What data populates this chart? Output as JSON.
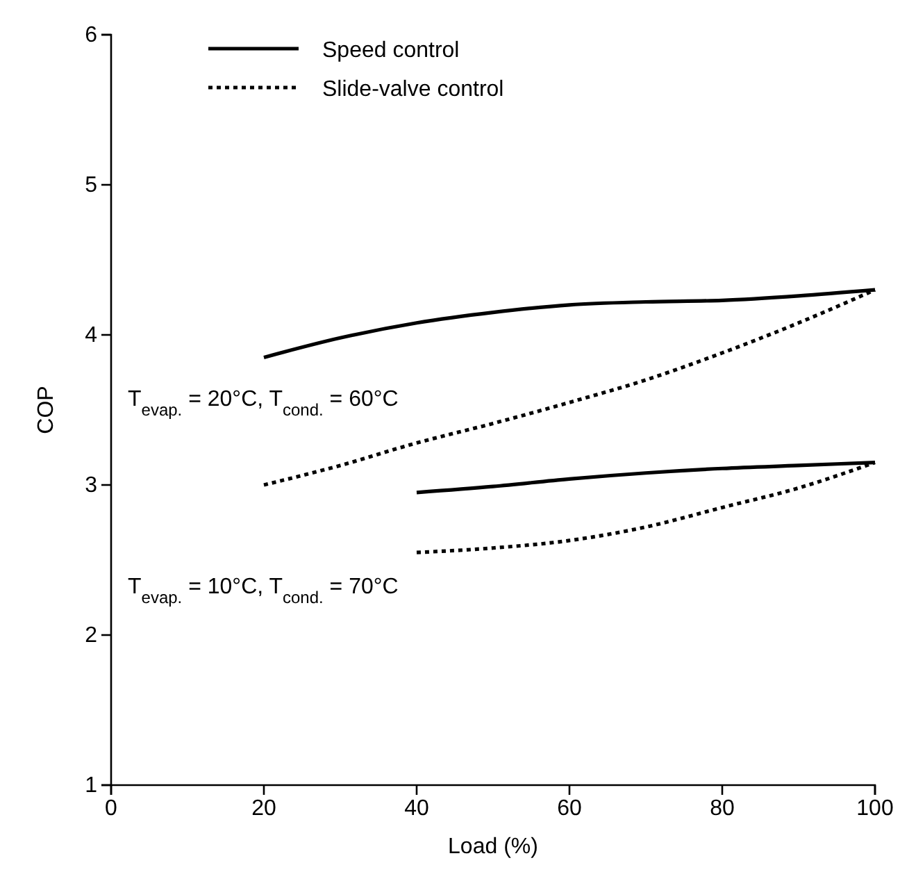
{
  "chart_data": {
    "type": "line",
    "xlabel": "Load (%)",
    "ylabel": "COP",
    "xlim": [
      0,
      100
    ],
    "xticks": [
      0,
      20,
      40,
      60,
      80,
      100
    ],
    "ylim": [
      1,
      6
    ],
    "yticks": [
      1,
      2,
      3,
      4,
      5,
      6
    ],
    "grid": false,
    "legend": "top left",
    "marker": "none",
    "series": [
      {
        "name": "Speed control",
        "color": "#000000",
        "line_style": "solid",
        "x": [
          20,
          30,
          40,
          50,
          60,
          70,
          80,
          90,
          100
        ],
        "values": [
          3.85,
          3.98,
          4.08,
          4.15,
          4.2,
          4.22,
          4.23,
          4.26,
          4.3
        ]
      },
      {
        "name": "Slide-valve control",
        "color": "#000000",
        "line_style": "dotted",
        "x": [
          20,
          30,
          40,
          50,
          60,
          70,
          80,
          90,
          100
        ],
        "values": [
          3.0,
          3.13,
          3.28,
          3.41,
          3.55,
          3.7,
          3.88,
          4.08,
          4.3
        ]
      },
      {
        "color": "#000000",
        "line_style": "solid",
        "x": [
          40,
          50,
          60,
          70,
          80,
          90,
          100
        ],
        "values": [
          2.95,
          2.99,
          3.04,
          3.08,
          3.11,
          3.13,
          3.15
        ]
      },
      {
        "color": "#000000",
        "line_style": "dotted",
        "x": [
          40,
          50,
          60,
          70,
          80,
          90,
          100
        ],
        "values": [
          2.55,
          2.58,
          2.63,
          2.72,
          2.85,
          2.98,
          3.15
        ]
      }
    ],
    "annotations": [
      "T$_{evap.}$ = 20°C, T$_{cond.}$ = 60°C",
      "T$_{evap.}$ = 10°C, T$_{cond.}$ = 70°C"
    ]
  }
}
